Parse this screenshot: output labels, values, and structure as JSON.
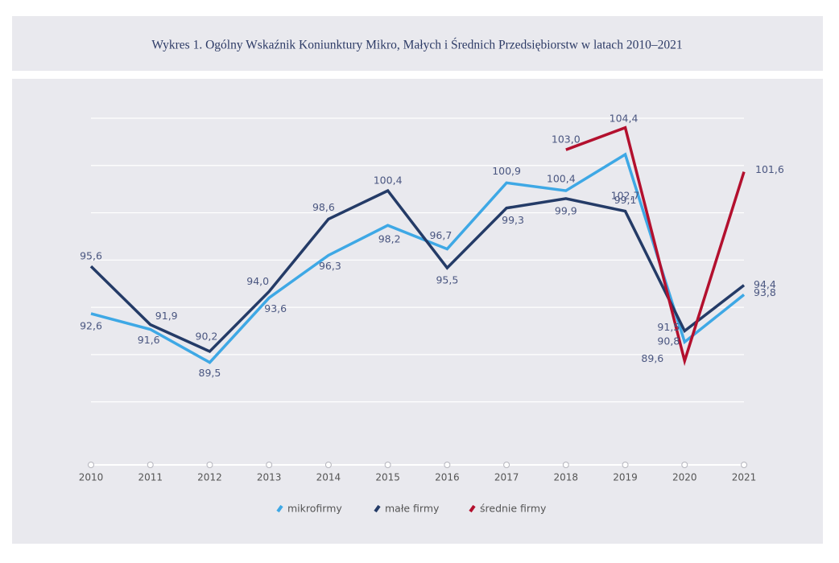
{
  "chart_data": {
    "type": "line",
    "title": "Wykres 1.  Ogólny Wskaźnik Koniunktury Mikro, Małych i Średnich Przedsiębiorstw w latach 2010–2021",
    "categories": [
      "2010",
      "2011",
      "2012",
      "2013",
      "2014",
      "2015",
      "2016",
      "2017",
      "2018",
      "2019",
      "2020",
      "2021"
    ],
    "series": [
      {
        "name": "mikrofirmy",
        "color": "#3ea8e5",
        "values": [
          92.6,
          91.6,
          89.5,
          93.6,
          96.3,
          98.2,
          96.7,
          100.9,
          100.4,
          102.7,
          90.8,
          93.8
        ],
        "value_labels": [
          "92,6",
          "91,6",
          "89,5",
          "93,6",
          "96,3",
          "98,2",
          "96,7",
          "100,9",
          "100,4",
          "102,7",
          "90,8",
          "93,8"
        ]
      },
      {
        "name": "małe firmy",
        "color": "#243b67",
        "values": [
          95.6,
          91.9,
          90.2,
          94.0,
          98.6,
          100.4,
          95.5,
          99.3,
          99.9,
          99.1,
          91.5,
          94.4
        ],
        "value_labels": [
          "95,6",
          "91,9",
          "90,2",
          "94,0",
          "98,6",
          "100,4",
          "95,5",
          "99,3",
          "99,9",
          "99,1",
          "91,5",
          "94,4"
        ]
      },
      {
        "name": "średnie firmy",
        "color": "#b3102e",
        "values": [
          null,
          null,
          null,
          null,
          null,
          null,
          null,
          null,
          103.0,
          104.4,
          89.6,
          101.6
        ],
        "value_labels": [
          null,
          null,
          null,
          null,
          null,
          null,
          null,
          null,
          "103,0",
          "104,4",
          "89,6",
          "101,6"
        ]
      }
    ],
    "ylim": [
      83,
      105
    ],
    "yticks": [
      87,
      90,
      93,
      96,
      99,
      102,
      105
    ],
    "grid": true
  }
}
